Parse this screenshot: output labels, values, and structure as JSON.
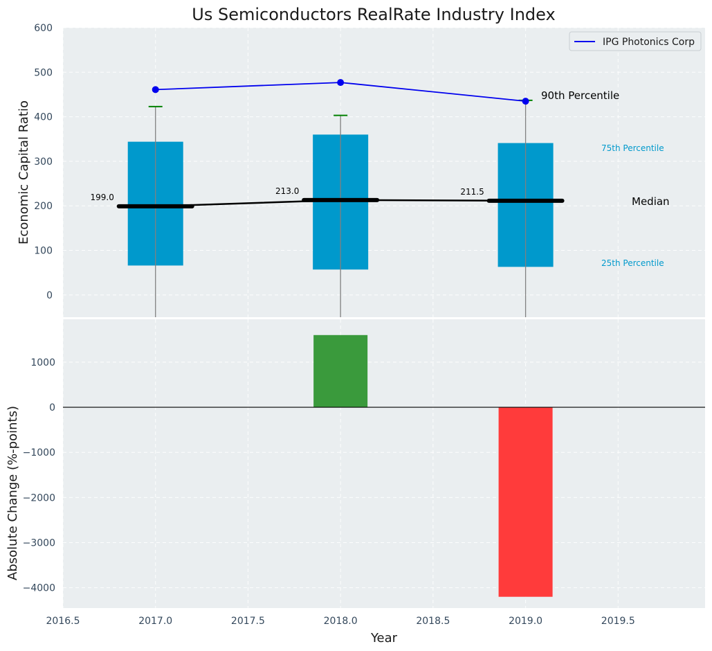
{
  "chart_data": [
    {
      "type": "box",
      "title": "Us Semiconductors RealRate Industry Index",
      "ylabel": "Economic Capital Ratio",
      "ylim": [
        -50,
        600
      ],
      "yticks": [
        0,
        100,
        200,
        300,
        400,
        500,
        600
      ],
      "grid": true,
      "legend": {
        "position": "top-right",
        "entries": [
          "IPG Photonics Corp"
        ]
      },
      "boxes": [
        {
          "x": 2017.0,
          "p25": 66,
          "median": 199.0,
          "p75": 344,
          "p90": 423,
          "median_label": "199.0"
        },
        {
          "x": 2018.0,
          "p25": 57,
          "median": 213.0,
          "p75": 360,
          "p90": 403,
          "median_label": "213.0"
        },
        {
          "x": 2019.0,
          "p25": 63,
          "median": 211.5,
          "p75": 341,
          "p90": 437,
          "median_label": "211.5"
        }
      ],
      "series": [
        {
          "name": "IPG Photonics Corp",
          "x": [
            2017.0,
            2018.0,
            2019.0
          ],
          "values": [
            461,
            477,
            435
          ],
          "color": "#0000ee"
        }
      ],
      "annotations": {
        "p90": "90th Percentile",
        "p75": "75th Percentile",
        "median": "Median",
        "p25": "25th Percentile"
      },
      "colors": {
        "box": "#0099cc",
        "median": "#000000",
        "whisker": "#808080",
        "cap": "#008000",
        "percentile_text": "#0099cc"
      }
    },
    {
      "type": "bar",
      "ylabel": "Absolute Change (%-points)",
      "xlabel": "Year",
      "x": [
        2018.0,
        2019.0
      ],
      "values": [
        1600,
        -4200
      ],
      "colors": [
        "#3a9a3c",
        "#ff3b3b"
      ],
      "ylim": [
        -4450,
        1950
      ],
      "yticks": [
        -4000,
        -3000,
        -2000,
        -1000,
        0,
        1000
      ],
      "xlim": [
        2016.5,
        2019.97
      ],
      "xticks": [
        "2016.5",
        "2017.0",
        "2017.5",
        "2018.0",
        "2018.5",
        "2019.0",
        "2019.5"
      ],
      "grid": true,
      "zero_line": true
    }
  ]
}
